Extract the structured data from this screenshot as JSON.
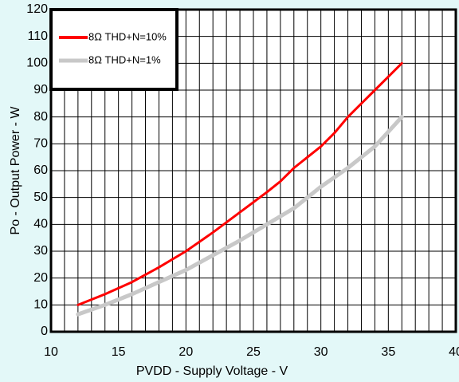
{
  "chart_data": {
    "type": "line",
    "xlabel": "PVDD - Supply Voltage - V",
    "ylabel": "Po - Output Power - W",
    "xlim": [
      10,
      40
    ],
    "xticks": [
      10,
      15,
      20,
      25,
      30,
      35,
      40
    ],
    "xgrid_lines": [
      10,
      11,
      12,
      13,
      14,
      15,
      16,
      17,
      18,
      19,
      20,
      21,
      22,
      23,
      24,
      25,
      26,
      27,
      28,
      29,
      30,
      31,
      32,
      33,
      34,
      35,
      36,
      37,
      38,
      39,
      40
    ],
    "ylim": [
      0,
      120
    ],
    "yticks": [
      0,
      10,
      20,
      30,
      40,
      50,
      60,
      70,
      80,
      90,
      100,
      110,
      120
    ],
    "grid": true,
    "legend": "upper left",
    "series": [
      {
        "name": "8Ω THD+N=10%",
        "color": "#ff0000",
        "x": [
          12,
          14,
          16,
          18,
          20,
          22,
          24,
          26,
          27,
          28,
          30,
          31,
          32,
          33,
          34,
          35,
          36
        ],
        "values": [
          10,
          14,
          18.5,
          24,
          30,
          37,
          44.5,
          52,
          56,
          61,
          69,
          74,
          80,
          85,
          90,
          95,
          100
        ]
      },
      {
        "name": "8Ω THD+N=1%",
        "color": "#c8c8c8",
        "x": [
          12,
          14,
          16,
          18,
          20,
          22,
          24,
          26,
          28,
          30,
          32,
          34,
          36
        ],
        "values": [
          6.5,
          10,
          14,
          18.5,
          23,
          28.5,
          34,
          40,
          46,
          54,
          61,
          69,
          80
        ]
      }
    ]
  }
}
